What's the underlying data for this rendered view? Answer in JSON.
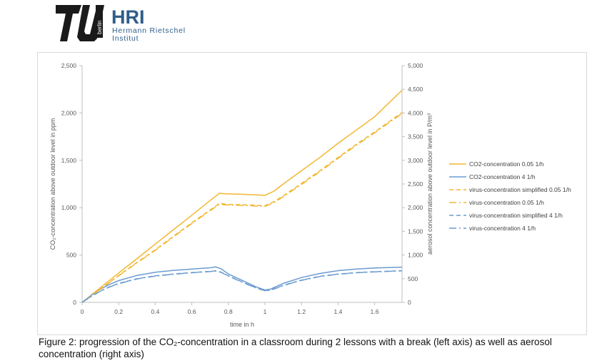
{
  "logo": {
    "brand_word": "berlin",
    "acronym": "HRI",
    "name_line1": "Hermann Rietschel",
    "name_line2": "Institut",
    "colors": {
      "tu_black": "#1a1a1a",
      "hri_blue": "#2f5d8a"
    }
  },
  "chart_data": {
    "type": "line",
    "xlabel": "time in h",
    "ylabel_left": "CO₂-concentration above outdoor level in ppm",
    "ylabel_right": "aerosol concentration above outdoor level in P/m³",
    "xlim": [
      0,
      1.75
    ],
    "ylim_left": [
      0,
      2500
    ],
    "ylim_right": [
      0,
      5000
    ],
    "x_ticks": [
      "0",
      "0.2",
      "0.4",
      "0.6",
      "0.8",
      "1",
      "1.2",
      "1.4",
      "1.6"
    ],
    "y_ticks_left": [
      "0",
      "500",
      "1,000",
      "1,500",
      "2,000",
      "2,500"
    ],
    "y_ticks_right": [
      "0",
      "500",
      "1,000",
      "1,500",
      "2,000",
      "2,500",
      "3,000",
      "3,500",
      "4,000",
      "4,500",
      "5,000"
    ],
    "grid": false,
    "legend_position": "right",
    "series": [
      {
        "name": "CO2-concentration 0.05 1/h",
        "axis": "left",
        "color": "#f2b731",
        "dash": "solid",
        "x": [
          0,
          0.1,
          0.2,
          0.3,
          0.4,
          0.5,
          0.6,
          0.7,
          0.75,
          0.8,
          0.9,
          1.0,
          1.05,
          1.1,
          1.2,
          1.3,
          1.4,
          1.5,
          1.6,
          1.75
        ],
        "y": [
          0,
          155,
          310,
          462,
          615,
          768,
          920,
          1075,
          1150,
          1145,
          1140,
          1130,
          1175,
          1250,
          1390,
          1530,
          1680,
          1820,
          1960,
          2240
        ]
      },
      {
        "name": "CO2-concentration 4 1/h",
        "axis": "left",
        "color": "#6b9bd1",
        "dash": "solid",
        "x": [
          0,
          0.05,
          0.1,
          0.15,
          0.2,
          0.3,
          0.4,
          0.5,
          0.6,
          0.7,
          0.73,
          0.76,
          0.8,
          0.9,
          0.95,
          1.0,
          1.03,
          1.1,
          1.2,
          1.3,
          1.4,
          1.5,
          1.6,
          1.75
        ],
        "y": [
          0,
          75,
          140,
          190,
          230,
          285,
          318,
          338,
          352,
          365,
          375,
          355,
          300,
          210,
          165,
          130,
          140,
          200,
          262,
          305,
          335,
          352,
          363,
          372
        ]
      },
      {
        "name": "virus-concentration simplified 0.05 1/h",
        "axis": "right",
        "color": "#f2b731",
        "dash": "6,4",
        "x": [
          0,
          0.1,
          0.2,
          0.3,
          0.4,
          0.5,
          0.6,
          0.7,
          0.75,
          0.8,
          0.9,
          1.0,
          1.05,
          1.1,
          1.2,
          1.3,
          1.4,
          1.5,
          1.6,
          1.75
        ],
        "y": [
          0,
          285,
          570,
          845,
          1110,
          1400,
          1680,
          1950,
          2090,
          2070,
          2060,
          2040,
          2130,
          2250,
          2510,
          2780,
          3060,
          3340,
          3600,
          4010
        ]
      },
      {
        "name": "virus-concentration 0.05 1/h",
        "axis": "right",
        "color": "#f2b731",
        "dash": "10,4,2,4",
        "x": [
          0,
          0.1,
          0.2,
          0.3,
          0.4,
          0.5,
          0.6,
          0.7,
          0.75,
          0.8,
          0.9,
          1.0,
          1.05,
          1.1,
          1.2,
          1.3,
          1.4,
          1.5,
          1.6,
          1.75
        ],
        "y": [
          0,
          280,
          560,
          835,
          1100,
          1385,
          1665,
          1935,
          2070,
          2055,
          2045,
          2025,
          2110,
          2230,
          2490,
          2760,
          3040,
          3320,
          3580,
          3990
        ]
      },
      {
        "name": "virus-concentration simplified 4 1/h",
        "axis": "right",
        "color": "#6b9bd1",
        "dash": "6,4",
        "x": [
          0,
          0.05,
          0.1,
          0.15,
          0.2,
          0.3,
          0.4,
          0.5,
          0.6,
          0.7,
          0.73,
          0.76,
          0.8,
          0.9,
          0.95,
          1.0,
          1.03,
          1.1,
          1.2,
          1.3,
          1.4,
          1.5,
          1.6,
          1.75
        ],
        "y": [
          0,
          130,
          240,
          330,
          400,
          500,
          560,
          600,
          630,
          655,
          665,
          640,
          560,
          390,
          310,
          250,
          260,
          360,
          470,
          550,
          600,
          630,
          648,
          670
        ]
      },
      {
        "name": "virus-concentration 4 1/h",
        "axis": "right",
        "color": "#6b9bd1",
        "dash": "10,4,2,4",
        "x": [
          0,
          0.05,
          0.1,
          0.15,
          0.2,
          0.3,
          0.4,
          0.5,
          0.6,
          0.7,
          0.73,
          0.76,
          0.8,
          0.9,
          0.95,
          1.0,
          1.03,
          1.1,
          1.2,
          1.3,
          1.4,
          1.5,
          1.6,
          1.75
        ],
        "y": [
          0,
          125,
          235,
          325,
          395,
          495,
          555,
          595,
          625,
          650,
          660,
          635,
          555,
          385,
          305,
          245,
          255,
          355,
          465,
          545,
          595,
          625,
          643,
          665
        ]
      }
    ]
  },
  "caption": "Figure 2: progression of the CO₂-concentration in a classroom during 2 lessons with a break (left axis) as well as aerosol concentration (right axis)"
}
